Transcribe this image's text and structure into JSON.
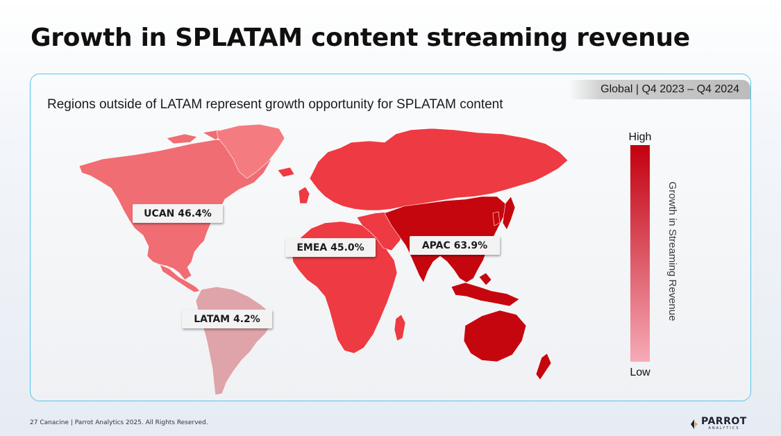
{
  "slide": {
    "title": "Growth in SPLATAM content streaming revenue",
    "subtitle": "Regions outside of LATAM represent growth opportunity for SPLATAM content",
    "scope": "Global  |  Q4 2023 – Q4 2024",
    "footer": "27  Canacine   |  Parrot Analytics 2025. All Rights Reserved.",
    "brand": {
      "name": "PARROT",
      "tagline": "ANALYTICS"
    }
  },
  "chart_data": {
    "type": "choropleth",
    "title": "Growth in SPLATAM content streaming revenue",
    "metric": "Growth in Streaming Revenue",
    "period": "Q4 2023 – Q4 2024",
    "regions": [
      {
        "name": "UCAN",
        "value": 46.4,
        "label": "UCAN 46.4%"
      },
      {
        "name": "EMEA",
        "value": 45.0,
        "label": "EMEA 45.0%"
      },
      {
        "name": "APAC",
        "value": 63.9,
        "label": "APAC 63.9%"
      },
      {
        "name": "LATAM",
        "value": 4.2,
        "label": "LATAM 4.2%"
      }
    ],
    "legend": {
      "high": "High",
      "low": "Low",
      "axis_title": "Growth in Streaming Revenue",
      "color_high": "#c2000f",
      "color_low": "#f6aab7"
    }
  },
  "colors": {
    "panel_border": "#57c4ee",
    "ucan": "#f06d73",
    "greenland": "#f47c80",
    "emea": "#ee3a42",
    "apac": "#c6060e",
    "latam": "#dfa4a9"
  }
}
